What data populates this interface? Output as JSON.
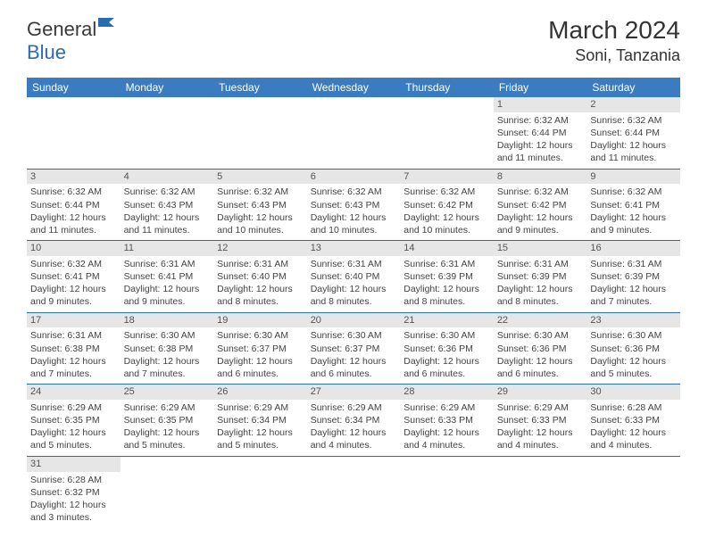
{
  "logo": {
    "general": "General",
    "blue": "Blue"
  },
  "title": "March 2024",
  "location": "Soni, Tanzania",
  "colors": {
    "header_bg": "#3b7bbf",
    "header_fg": "#ffffff",
    "rule": "#2b6cb0",
    "daynum_bg": "#e6e6e6",
    "text": "#444444"
  },
  "weekdays": [
    "Sunday",
    "Monday",
    "Tuesday",
    "Wednesday",
    "Thursday",
    "Friday",
    "Saturday"
  ],
  "weeks": [
    [
      null,
      null,
      null,
      null,
      null,
      {
        "n": "1",
        "sr": "6:32 AM",
        "ss": "6:44 PM",
        "dl": "12 hours and 11 minutes."
      },
      {
        "n": "2",
        "sr": "6:32 AM",
        "ss": "6:44 PM",
        "dl": "12 hours and 11 minutes."
      }
    ],
    [
      {
        "n": "3",
        "sr": "6:32 AM",
        "ss": "6:44 PM",
        "dl": "12 hours and 11 minutes."
      },
      {
        "n": "4",
        "sr": "6:32 AM",
        "ss": "6:43 PM",
        "dl": "12 hours and 11 minutes."
      },
      {
        "n": "5",
        "sr": "6:32 AM",
        "ss": "6:43 PM",
        "dl": "12 hours and 10 minutes."
      },
      {
        "n": "6",
        "sr": "6:32 AM",
        "ss": "6:43 PM",
        "dl": "12 hours and 10 minutes."
      },
      {
        "n": "7",
        "sr": "6:32 AM",
        "ss": "6:42 PM",
        "dl": "12 hours and 10 minutes."
      },
      {
        "n": "8",
        "sr": "6:32 AM",
        "ss": "6:42 PM",
        "dl": "12 hours and 9 minutes."
      },
      {
        "n": "9",
        "sr": "6:32 AM",
        "ss": "6:41 PM",
        "dl": "12 hours and 9 minutes."
      }
    ],
    [
      {
        "n": "10",
        "sr": "6:32 AM",
        "ss": "6:41 PM",
        "dl": "12 hours and 9 minutes."
      },
      {
        "n": "11",
        "sr": "6:31 AM",
        "ss": "6:41 PM",
        "dl": "12 hours and 9 minutes."
      },
      {
        "n": "12",
        "sr": "6:31 AM",
        "ss": "6:40 PM",
        "dl": "12 hours and 8 minutes."
      },
      {
        "n": "13",
        "sr": "6:31 AM",
        "ss": "6:40 PM",
        "dl": "12 hours and 8 minutes."
      },
      {
        "n": "14",
        "sr": "6:31 AM",
        "ss": "6:39 PM",
        "dl": "12 hours and 8 minutes."
      },
      {
        "n": "15",
        "sr": "6:31 AM",
        "ss": "6:39 PM",
        "dl": "12 hours and 8 minutes."
      },
      {
        "n": "16",
        "sr": "6:31 AM",
        "ss": "6:39 PM",
        "dl": "12 hours and 7 minutes."
      }
    ],
    [
      {
        "n": "17",
        "sr": "6:31 AM",
        "ss": "6:38 PM",
        "dl": "12 hours and 7 minutes."
      },
      {
        "n": "18",
        "sr": "6:30 AM",
        "ss": "6:38 PM",
        "dl": "12 hours and 7 minutes."
      },
      {
        "n": "19",
        "sr": "6:30 AM",
        "ss": "6:37 PM",
        "dl": "12 hours and 6 minutes."
      },
      {
        "n": "20",
        "sr": "6:30 AM",
        "ss": "6:37 PM",
        "dl": "12 hours and 6 minutes."
      },
      {
        "n": "21",
        "sr": "6:30 AM",
        "ss": "6:36 PM",
        "dl": "12 hours and 6 minutes."
      },
      {
        "n": "22",
        "sr": "6:30 AM",
        "ss": "6:36 PM",
        "dl": "12 hours and 6 minutes."
      },
      {
        "n": "23",
        "sr": "6:30 AM",
        "ss": "6:36 PM",
        "dl": "12 hours and 5 minutes."
      }
    ],
    [
      {
        "n": "24",
        "sr": "6:29 AM",
        "ss": "6:35 PM",
        "dl": "12 hours and 5 minutes."
      },
      {
        "n": "25",
        "sr": "6:29 AM",
        "ss": "6:35 PM",
        "dl": "12 hours and 5 minutes."
      },
      {
        "n": "26",
        "sr": "6:29 AM",
        "ss": "6:34 PM",
        "dl": "12 hours and 5 minutes."
      },
      {
        "n": "27",
        "sr": "6:29 AM",
        "ss": "6:34 PM",
        "dl": "12 hours and 4 minutes."
      },
      {
        "n": "28",
        "sr": "6:29 AM",
        "ss": "6:33 PM",
        "dl": "12 hours and 4 minutes."
      },
      {
        "n": "29",
        "sr": "6:29 AM",
        "ss": "6:33 PM",
        "dl": "12 hours and 4 minutes."
      },
      {
        "n": "30",
        "sr": "6:28 AM",
        "ss": "6:33 PM",
        "dl": "12 hours and 4 minutes."
      }
    ],
    [
      {
        "n": "31",
        "sr": "6:28 AM",
        "ss": "6:32 PM",
        "dl": "12 hours and 3 minutes."
      },
      null,
      null,
      null,
      null,
      null,
      null
    ]
  ],
  "labels": {
    "sunrise": "Sunrise: ",
    "sunset": "Sunset: ",
    "daylight": "Daylight: "
  }
}
